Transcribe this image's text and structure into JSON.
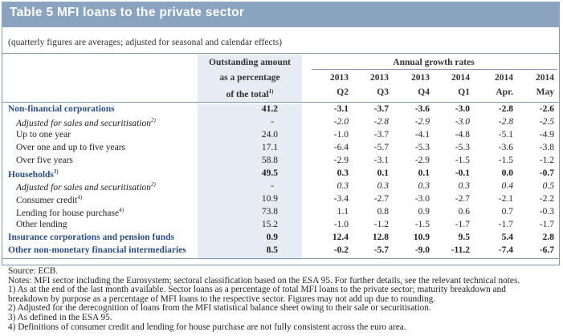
{
  "table": {
    "title": "Table 5 MFI loans to the private sector",
    "subtitle": "(quarterly figures are averages; adjusted for seasonal and calendar effects)",
    "outstanding_header": [
      "Outstanding amount",
      "as a percentage",
      "of the total"
    ],
    "outstanding_sup": "1)",
    "growth_header": "Annual growth rates",
    "periods": [
      {
        "year": "2013",
        "sub": "Q2"
      },
      {
        "year": "2013",
        "sub": "Q3"
      },
      {
        "year": "2013",
        "sub": "Q4"
      },
      {
        "year": "2014",
        "sub": "Q1"
      },
      {
        "year": "2014",
        "sub": "Apr."
      },
      {
        "year": "2014",
        "sub": "May"
      }
    ],
    "rows": [
      {
        "label": "Non-financial corporations",
        "sup": "",
        "style": "sect",
        "out": "41.2",
        "vals": [
          "-3.1",
          "-3.7",
          "-3.6",
          "-3.0",
          "-2.8",
          "-2.6"
        ]
      },
      {
        "label": "Adjusted for sales and securitisation",
        "sup": "2)",
        "style": "ital",
        "out": "-",
        "vals": [
          "-2.0",
          "-2.8",
          "-2.9",
          "-3.0",
          "-2.8",
          "-2.5"
        ]
      },
      {
        "label": "Up to one year",
        "sup": "",
        "style": "indent",
        "out": "24.0",
        "vals": [
          "-1.0",
          "-3.7",
          "-4.1",
          "-4.8",
          "-5.1",
          "-4.9"
        ]
      },
      {
        "label": "Over one and up to five years",
        "sup": "",
        "style": "indent",
        "out": "17.1",
        "vals": [
          "-6.4",
          "-5.7",
          "-5.3",
          "-5.3",
          "-3.6",
          "-3.8"
        ]
      },
      {
        "label": "Over five years",
        "sup": "",
        "style": "indent",
        "out": "58.8",
        "vals": [
          "-2.9",
          "-3.1",
          "-2.9",
          "-1.5",
          "-1.5",
          "-1.2"
        ]
      },
      {
        "label": "Households",
        "sup": "3)",
        "style": "sect",
        "out": "49.5",
        "vals": [
          "0.3",
          "0.1",
          "0.1",
          "-0.1",
          "0.0",
          "-0.7"
        ]
      },
      {
        "label": "Adjusted for sales and securitisation",
        "sup": "2)",
        "style": "ital",
        "out": "-",
        "vals": [
          "0.3",
          "0.3",
          "0.3",
          "0.3",
          "0.4",
          "0.5"
        ]
      },
      {
        "label": "Consumer credit",
        "sup": "4)",
        "style": "indent",
        "out": "10.9",
        "vals": [
          "-3.4",
          "-2.7",
          "-3.0",
          "-2.7",
          "-2.1",
          "-2.2"
        ]
      },
      {
        "label": "Lending for house purchase",
        "sup": "4)",
        "style": "indent",
        "out": "73.8",
        "vals": [
          "1.1",
          "0.8",
          "0.9",
          "0.6",
          "0.7",
          "-0.3"
        ]
      },
      {
        "label": "Other lending",
        "sup": "",
        "style": "indent",
        "out": "15.2",
        "vals": [
          "-1.0",
          "-1.2",
          "-1.5",
          "-1.7",
          "-1.7",
          "-1.7"
        ]
      },
      {
        "label": "Insurance corporations and pension funds",
        "sup": "",
        "style": "sect",
        "out": "0.9",
        "vals": [
          "12.4",
          "12.8",
          "10.9",
          "9.5",
          "5.4",
          "2.8"
        ]
      },
      {
        "label": "Other non-monetary financial intermediaries",
        "sup": "",
        "style": "sect",
        "out": "8.5",
        "vals": [
          "-0.2",
          "-5.7",
          "-9.0",
          "-11.2",
          "-7.4",
          "-6.7"
        ]
      }
    ],
    "notes": [
      "Source: ECB.",
      "Notes: MFI sector including the Eurosystem; sectoral classification based on the ESA 95. For further details, see the relevant technical notes.",
      "1) As at the end of the last month available. Sector loans as a percentage of total MFI loans to the private sector; maturity breakdown and",
      "breakdown by purpose as a percentage of MFI loans to the respective sector. Figures may not add up due to rounding.",
      "2) Adjusted for the derecognition of loans from the MFI statistical balance sheet owing to their sale or securitisation.",
      "3) As defined in the ESA 95.",
      "4) Definitions of consumer credit and lending for house purchase are not fully consistent across the euro area."
    ]
  }
}
